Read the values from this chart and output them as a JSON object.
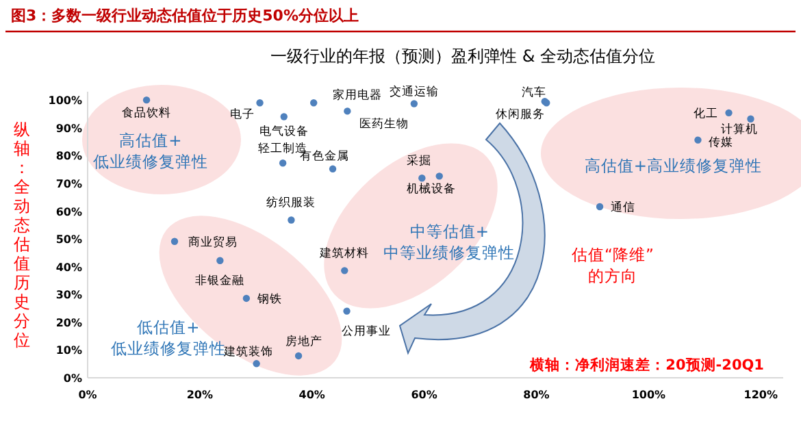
{
  "chart_data": {
    "type": "scatter",
    "title": "图3：多数一级行业动态估值位于历史50%分位以上",
    "subtitle": "一级行业的年报（预测）盈利弹性 & 全动态估值分位",
    "xlabel": "横轴：净利润速差：20预测-20Q1",
    "ylabel": "纵轴：全动态估值历史分位",
    "x": [
      10.5,
      30.7,
      35,
      40.3,
      46.3,
      58.2,
      81.5,
      81.8,
      34.8,
      43.7,
      36.3,
      15.5,
      23.6,
      45.8,
      28.3,
      46.2,
      37.6,
      30.1,
      59.6,
      62.7,
      114.3,
      118.2,
      108.8,
      91.3
    ],
    "series": [
      {
        "color": "#4f81bd",
        "values": [
          100,
          99,
          94,
          99,
          96,
          98.7,
          99.5,
          99,
          77.3,
          75.2,
          56.8,
          49.1,
          42.2,
          38.6,
          28.6,
          24,
          7.9,
          5.1,
          71.9,
          72.6,
          95.4,
          93.2,
          85.6,
          61.6
        ]
      }
    ],
    "xlim": [
      0,
      124
    ],
    "ylim": [
      0,
      103
    ],
    "xticks": [
      {
        "value": 0,
        "label": "0%"
      },
      {
        "value": 20,
        "label": "20%"
      },
      {
        "value": 40,
        "label": "40%"
      },
      {
        "value": 60,
        "label": "60%"
      },
      {
        "value": 80,
        "label": "80%"
      },
      {
        "value": 100,
        "label": "100%"
      },
      {
        "value": 120,
        "label": "120%"
      }
    ],
    "yticks": [
      {
        "value": 0,
        "label": "0%"
      },
      {
        "value": 10,
        "label": "10%"
      },
      {
        "value": 20,
        "label": "20%"
      },
      {
        "value": 30,
        "label": "30%"
      },
      {
        "value": 40,
        "label": "40%"
      },
      {
        "value": 50,
        "label": "50%"
      },
      {
        "value": 60,
        "label": "60%"
      },
      {
        "value": 70,
        "label": "70%"
      },
      {
        "value": 80,
        "label": "80%"
      },
      {
        "value": 90,
        "label": "90%"
      },
      {
        "value": 100,
        "label": "100%"
      }
    ],
    "grid": false,
    "marker": "circle",
    "annotations": [
      {
        "text": "食品饮料",
        "x": 10.5,
        "y": 100
      },
      {
        "text": "电子",
        "x": 30.7,
        "y": 99
      },
      {
        "text": "电气设备",
        "x": 35,
        "y": 94
      },
      {
        "text": "家用电器",
        "x": 40.3,
        "y": 99
      },
      {
        "text": "医药生物",
        "x": 46.3,
        "y": 96
      },
      {
        "text": "交通运输",
        "x": 58.2,
        "y": 98.7
      },
      {
        "text": "汽车",
        "x": 81.5,
        "y": 99.5
      },
      {
        "text": "休闲服务",
        "x": 81.8,
        "y": 99
      },
      {
        "text": "轻工制造",
        "x": 34.8,
        "y": 77.3
      },
      {
        "text": "有色金属",
        "x": 43.7,
        "y": 75.2
      },
      {
        "text": "纺织服装",
        "x": 36.3,
        "y": 56.8
      },
      {
        "text": "商业贸易",
        "x": 15.5,
        "y": 49.1
      },
      {
        "text": "非银金融",
        "x": 23.6,
        "y": 42.2
      },
      {
        "text": "建筑材料",
        "x": 45.8,
        "y": 38.6
      },
      {
        "text": "钢铁",
        "x": 28.3,
        "y": 28.6
      },
      {
        "text": "公用事业",
        "x": 46.2,
        "y": 24
      },
      {
        "text": "房地产",
        "x": 37.6,
        "y": 7.9
      },
      {
        "text": "建筑装饰",
        "x": 30.1,
        "y": 5.1
      },
      {
        "text": "采掘",
        "x": 59.6,
        "y": 71.9
      },
      {
        "text": "机械设备",
        "x": 62.7,
        "y": 72.6
      },
      {
        "text": "化工",
        "x": 114.3,
        "y": 95.4
      },
      {
        "text": "计算机",
        "x": 118.2,
        "y": 93.2
      },
      {
        "text": "传媒",
        "x": 108.8,
        "y": 85.6
      },
      {
        "text": "通信",
        "x": 91.3,
        "y": 61.6
      },
      "高估值+\n低业绩修复弹性",
      "中等估值+\n中等业绩修复弹性",
      "低估值+\n低业绩修复弹性",
      "高估值+高业绩修复弹性",
      "估值“降维”\n的方向"
    ]
  }
}
